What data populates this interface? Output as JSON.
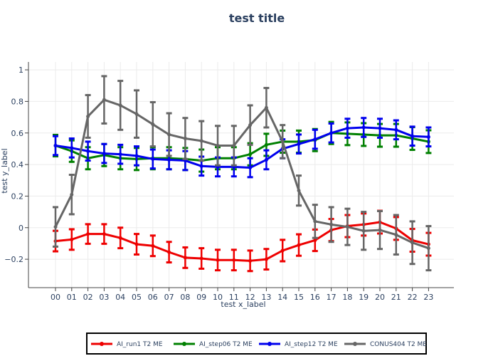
{
  "chart_data": {
    "type": "line",
    "title": "test title",
    "xlabel": "test x_label",
    "ylabel": "test y_label",
    "categories": [
      "00",
      "01",
      "02",
      "03",
      "04",
      "05",
      "06",
      "07",
      "08",
      "09",
      "10",
      "11",
      "12",
      "13",
      "14",
      "15",
      "16",
      "17",
      "18",
      "19",
      "20",
      "21",
      "22",
      "23"
    ],
    "ylim": [
      -0.38,
      1.05
    ],
    "yticks": [
      -0.2,
      0,
      0.2,
      0.4,
      0.6,
      0.8,
      1
    ],
    "ytick_labels": [
      "−0.2",
      "0",
      "0.2",
      "0.4",
      "0.6",
      "0.8",
      "1"
    ],
    "grid": true,
    "legend_position": "bottom",
    "series": [
      {
        "name": "AI_run1 T2 ME",
        "color": "#ee0000",
        "values": [
          -0.085,
          -0.075,
          -0.04,
          -0.04,
          -0.065,
          -0.105,
          -0.115,
          -0.155,
          -0.19,
          -0.195,
          -0.205,
          -0.205,
          -0.21,
          -0.2,
          -0.145,
          -0.11,
          -0.08,
          -0.015,
          0.01,
          0.02,
          0.035,
          -0.005,
          -0.08,
          -0.105
        ],
        "errors": [
          0.065,
          0.065,
          0.062,
          0.062,
          0.065,
          0.065,
          0.065,
          0.065,
          0.065,
          0.065,
          0.065,
          0.065,
          0.065,
          0.065,
          0.068,
          0.068,
          0.068,
          0.07,
          0.07,
          0.07,
          0.072,
          0.072,
          0.072,
          0.072
        ]
      },
      {
        "name": "AI_step06 T2 ME",
        "color": "#008000",
        "values": [
          0.52,
          0.485,
          0.44,
          0.46,
          0.44,
          0.435,
          0.44,
          0.44,
          0.435,
          0.425,
          0.44,
          0.44,
          0.465,
          0.525,
          0.545,
          0.545,
          0.555,
          0.6,
          0.595,
          0.59,
          0.585,
          0.585,
          0.565,
          0.545
        ],
        "errors": [
          0.068,
          0.068,
          0.07,
          0.07,
          0.07,
          0.07,
          0.07,
          0.07,
          0.07,
          0.07,
          0.07,
          0.07,
          0.07,
          0.07,
          0.07,
          0.07,
          0.07,
          0.07,
          0.072,
          0.072,
          0.072,
          0.072,
          0.072,
          0.072
        ]
      },
      {
        "name": "AI_step12 T2 ME",
        "color": "#0000ee",
        "values": [
          0.52,
          0.505,
          0.485,
          0.47,
          0.465,
          0.455,
          0.435,
          0.43,
          0.425,
          0.39,
          0.385,
          0.385,
          0.38,
          0.43,
          0.5,
          0.53,
          0.56,
          0.6,
          0.63,
          0.635,
          0.63,
          0.62,
          0.58,
          0.575
        ],
        "errors": [
          0.06,
          0.06,
          0.06,
          0.06,
          0.06,
          0.06,
          0.06,
          0.06,
          0.06,
          0.06,
          0.06,
          0.06,
          0.06,
          0.06,
          0.06,
          0.06,
          0.06,
          0.06,
          0.06,
          0.06,
          0.06,
          0.06,
          0.06,
          0.06
        ]
      },
      {
        "name": "CONUS404 T2 ME",
        "color": "#666666",
        "values": [
          0.005,
          0.21,
          0.705,
          0.81,
          0.775,
          0.72,
          0.655,
          0.59,
          0.565,
          0.55,
          0.52,
          0.52,
          0.65,
          0.76,
          0.545,
          0.235,
          0.04,
          0.02,
          0.005,
          -0.02,
          -0.015,
          -0.045,
          -0.095,
          -0.13
        ],
        "errors": [
          0.125,
          0.125,
          0.135,
          0.15,
          0.155,
          0.15,
          0.14,
          0.135,
          0.13,
          0.125,
          0.125,
          0.125,
          0.125,
          0.125,
          0.105,
          0.095,
          0.105,
          0.11,
          0.115,
          0.12,
          0.12,
          0.125,
          0.135,
          0.14
        ]
      }
    ]
  }
}
